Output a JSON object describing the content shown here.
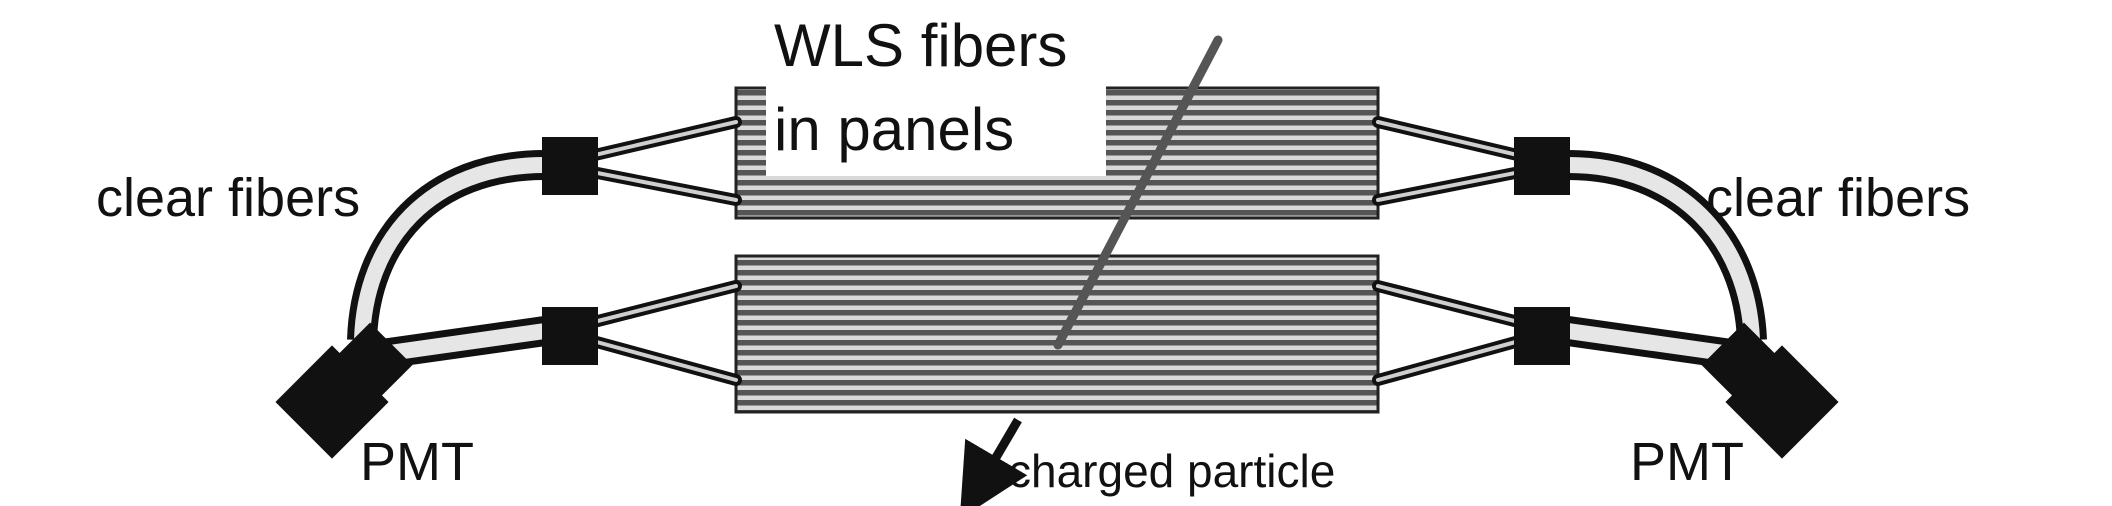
{
  "diagram": {
    "title_line1": "WLS fibers",
    "title_line2": "in panels",
    "left_clear_fibers": "clear fibers",
    "right_clear_fibers": "clear fibers",
    "left_pmt": "PMT",
    "right_pmt": "PMT",
    "particle_label": "charged particle"
  },
  "colors": {
    "ink": "#111111",
    "panel_stripe_dark": "#555555",
    "panel_stripe_light": "#d8d8d8",
    "clear_fiber_fill": "#e6e6e6",
    "particle_track": "#555555"
  }
}
